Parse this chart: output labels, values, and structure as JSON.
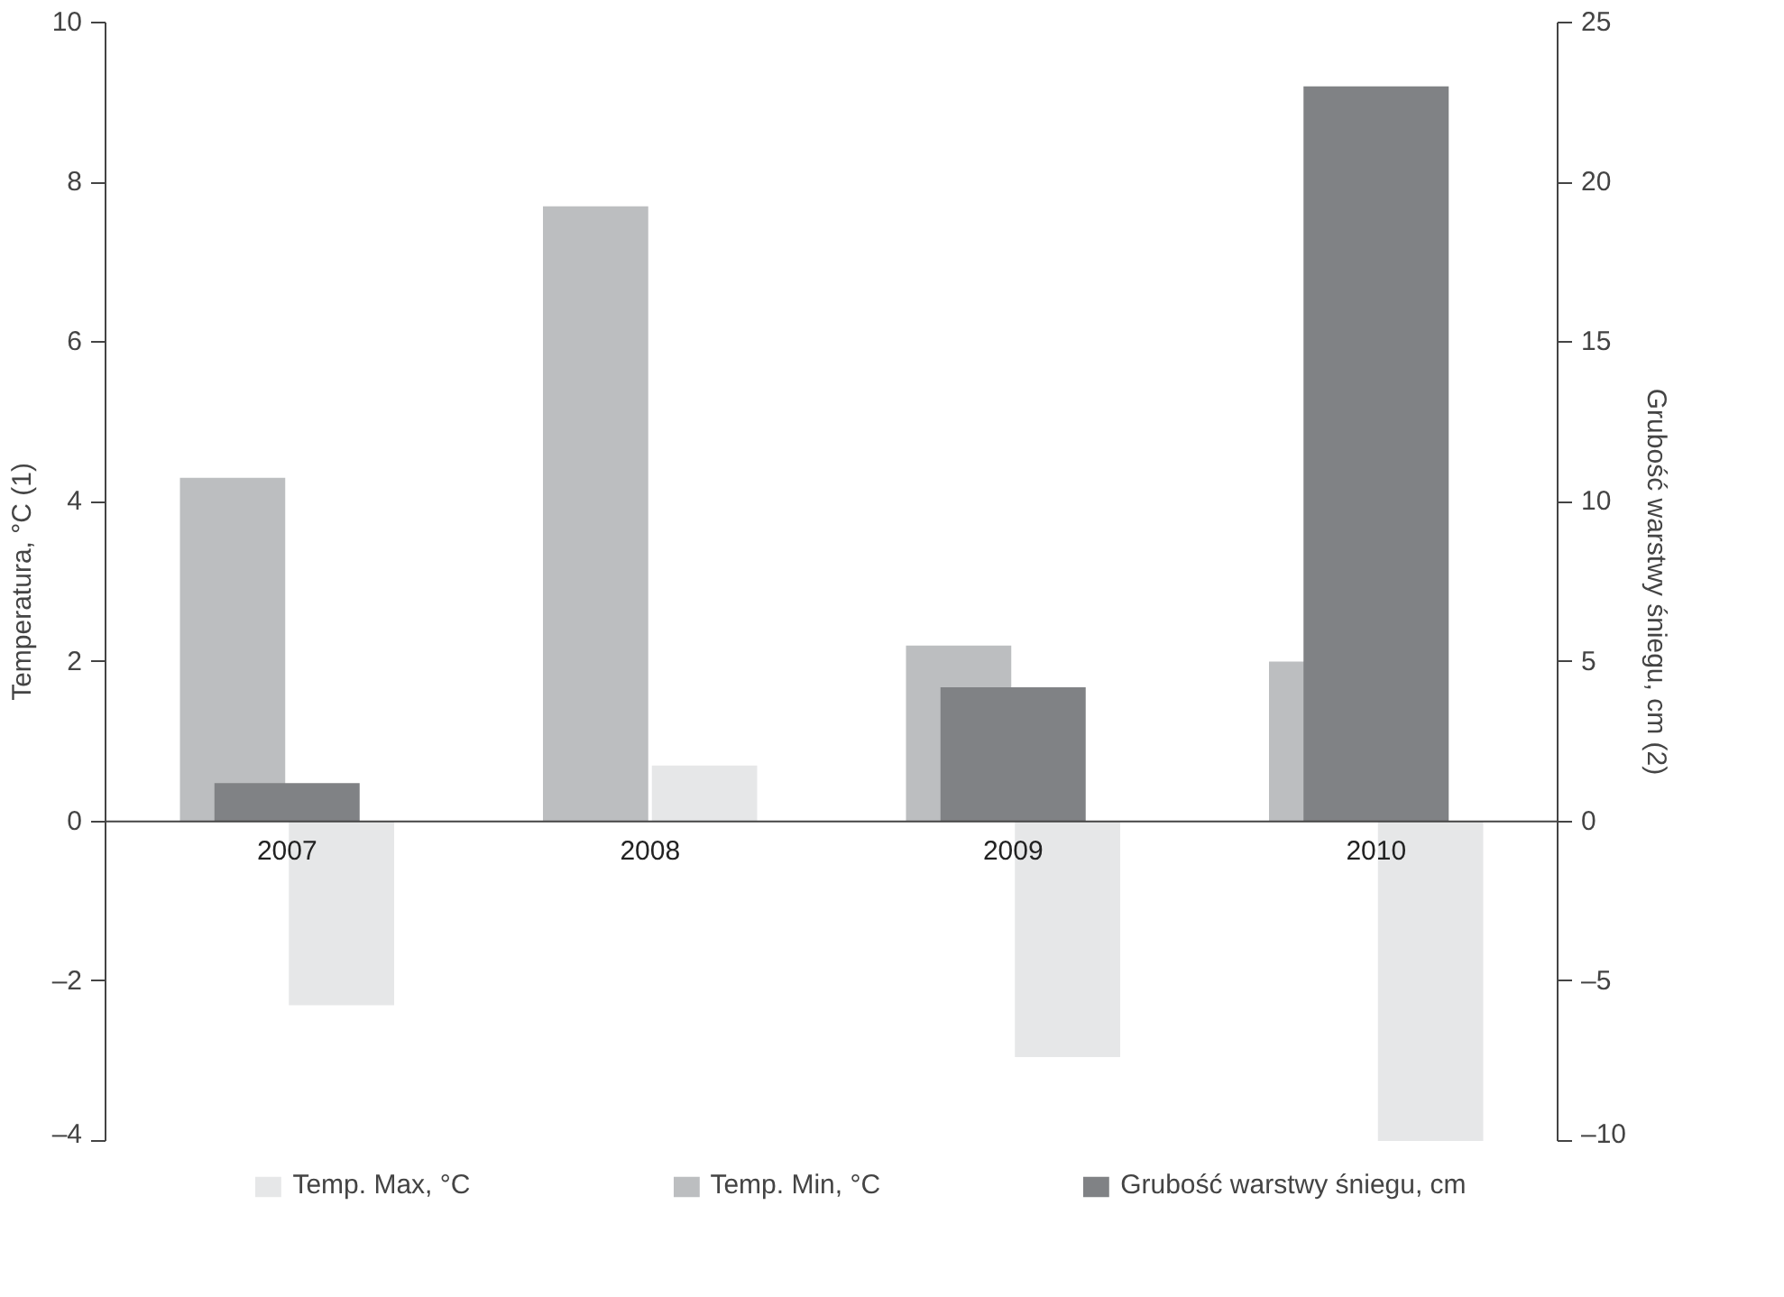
{
  "chart_data": {
    "type": "bar",
    "ylabel": "Temperatura, °C (1)",
    "y2label": "Grubość warstwy śniegu, cm (2)",
    "categories": [
      "2007",
      "2008",
      "2009",
      "2010"
    ],
    "series": [
      {
        "name": "Temp. Max, °C",
        "color": "#e6e7e8",
        "values": [
          -2.3,
          0.7,
          -2.95,
          -4.0
        ]
      },
      {
        "name": "Temp. Min, °C",
        "color": "#bcbec0",
        "values": [
          4.3,
          7.7,
          2.2,
          2.0
        ]
      },
      {
        "name": "Grubość warstwy śniegu, cm",
        "color": "#808285",
        "values": [
          1.2,
          null,
          4.2,
          23.0
        ],
        "axis": "y2"
      }
    ],
    "ylim": [
      -4,
      10
    ],
    "yticks": [
      {
        "value": -4,
        "label": "–4"
      },
      {
        "value": -2,
        "label": "–2"
      },
      0,
      2,
      4,
      6,
      8,
      10
    ],
    "y2lim": [
      -10,
      25
    ],
    "y2ticks": [
      {
        "value": -10,
        "label": "–10"
      },
      {
        "value": -5,
        "label": "–5"
      },
      0,
      5,
      10,
      15,
      20,
      25
    ],
    "grid": false,
    "legend": "bottom"
  }
}
